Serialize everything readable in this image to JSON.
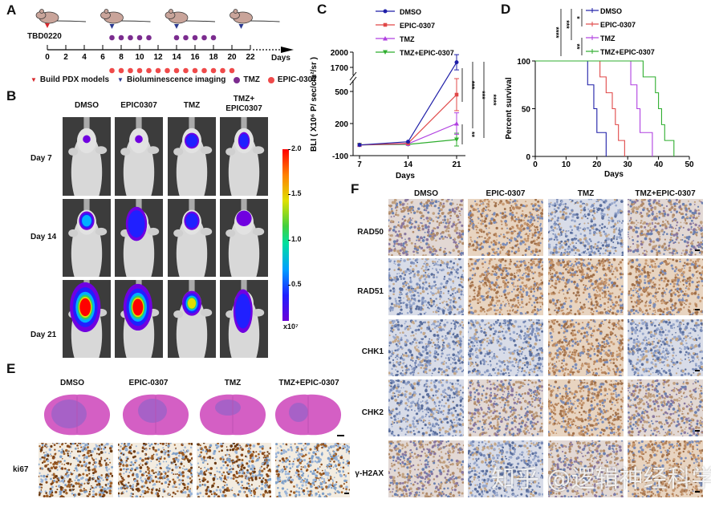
{
  "panels": {
    "A": "A",
    "B": "B",
    "C": "C",
    "D": "D",
    "E": "E",
    "F": "F"
  },
  "panelA": {
    "model": "TBD0220",
    "days_label": "Days",
    "ticks": [
      "0",
      "2",
      "4",
      "6",
      "8",
      "10",
      "12",
      "14",
      "16",
      "18",
      "20",
      "22"
    ],
    "build_day": 0,
    "imaging_days": [
      7,
      14,
      21
    ],
    "tmz_days": [
      7,
      8,
      9,
      10,
      11,
      14,
      15,
      16,
      17,
      18
    ],
    "epic_days": [
      7,
      8,
      9,
      10,
      11,
      12,
      13,
      14,
      15,
      16,
      17,
      18,
      19,
      20
    ],
    "legend": {
      "build": "Build PDX models",
      "imaging": "Bioluminescence imaging",
      "tmz": "TMZ",
      "epic": "EPIC-0307"
    },
    "colors": {
      "build": "#d6262b",
      "imaging": "#2b3990",
      "tmz": "#7b2c8f",
      "epic": "#ef4a4a",
      "mouse": "#c9a49a"
    }
  },
  "panelB": {
    "columns": [
      "DMSO",
      "EPIC0307",
      "TMZ",
      "TMZ+\nEPIC0307"
    ],
    "columns_line1": [
      "DMSO",
      "EPIC0307",
      "TMZ",
      "TMZ+"
    ],
    "columns_line2": [
      "",
      "",
      "",
      "EPIC0307"
    ],
    "rows": [
      "Day 7",
      "Day 14",
      "Day 21"
    ],
    "colorbar": {
      "ticks": [
        "2.0",
        "1.5",
        "1.0",
        "0.5"
      ],
      "unit": "x10⁷",
      "max": 2.0,
      "min": 0.1
    }
  },
  "chart_data": [
    {
      "type": "line",
      "panel": "C",
      "xlabel": "Days",
      "ylabel": "BLI ( X10⁶ P/ sec/cm²/sr )",
      "x": [
        7,
        14,
        21
      ],
      "x_ticks": [
        "7",
        "14",
        "21"
      ],
      "y_ticks": [
        "2000",
        "1700",
        "500",
        "200",
        "-100"
      ],
      "ylim": [
        -100,
        2000
      ],
      "y_axis_break": true,
      "legend_position": "top",
      "series": [
        {
          "name": "DMSO",
          "color": "#1f1fa8",
          "marker": "circle",
          "values": [
            0,
            30,
            1800
          ],
          "error": [
            0,
            0,
            150
          ]
        },
        {
          "name": "EPIC-0307",
          "color": "#e04848",
          "marker": "square",
          "values": [
            0,
            15,
            470
          ],
          "error": [
            0,
            0,
            150
          ]
        },
        {
          "name": "TMZ",
          "color": "#b040e0",
          "marker": "triangle-up",
          "values": [
            0,
            10,
            200
          ],
          "error": [
            0,
            0,
            100
          ]
        },
        {
          "name": "TMZ+EPIC-0307",
          "color": "#2fae2f",
          "marker": "triangle-down",
          "values": [
            0,
            5,
            50
          ],
          "error": [
            0,
            0,
            60
          ]
        }
      ],
      "significance": [
        "***",
        "***",
        "****",
        "**"
      ]
    },
    {
      "type": "line",
      "subtype": "kaplan-meier",
      "panel": "D",
      "xlabel": "Days",
      "ylabel": "Percent survival",
      "xlim": [
        0,
        50
      ],
      "ylim": [
        0,
        100
      ],
      "x_ticks": [
        "0",
        "10",
        "20",
        "30",
        "40",
        "50"
      ],
      "y_ticks": [
        "0",
        "50",
        "100"
      ],
      "legend_position": "top-right",
      "series": [
        {
          "name": "DMSO",
          "color": "#1f1fa8",
          "steps": [
            [
              0,
              100
            ],
            [
              17,
              75
            ],
            [
              19,
              50
            ],
            [
              20,
              25
            ],
            [
              23,
              0
            ]
          ]
        },
        {
          "name": "EPIC-0307",
          "color": "#e04848",
          "steps": [
            [
              0,
              100
            ],
            [
              21,
              83.3
            ],
            [
              23,
              66.7
            ],
            [
              25,
              50
            ],
            [
              26,
              33.3
            ],
            [
              27,
              16.7
            ],
            [
              29,
              0
            ]
          ]
        },
        {
          "name": "TMZ",
          "color": "#b040e0",
          "steps": [
            [
              0,
              100
            ],
            [
              31,
              75
            ],
            [
              33,
              50
            ],
            [
              34,
              25
            ],
            [
              38,
              0
            ]
          ]
        },
        {
          "name": "TMZ+EPIC-0307",
          "color": "#2fae2f",
          "steps": [
            [
              0,
              100
            ],
            [
              35,
              83.3
            ],
            [
              39,
              66.7
            ],
            [
              40,
              50
            ],
            [
              41,
              33.3
            ],
            [
              42,
              16.7
            ],
            [
              45,
              0
            ]
          ]
        }
      ],
      "significance": [
        "****",
        "***",
        "*",
        "**"
      ]
    }
  ],
  "panelE": {
    "columns": [
      "DMSO",
      "EPIC-0307",
      "TMZ",
      "TMZ+EPIC-0307"
    ],
    "row_label": "ki67"
  },
  "panelF": {
    "columns": [
      "DMSO",
      "EPIC-0307",
      "TMZ",
      "TMZ+EPIC-0307"
    ],
    "rows": [
      "RAD50",
      "RAD51",
      "CHK1",
      "CHK2",
      "γ-H2AX"
    ]
  },
  "watermark": "知乎 @逻辑神经科学"
}
